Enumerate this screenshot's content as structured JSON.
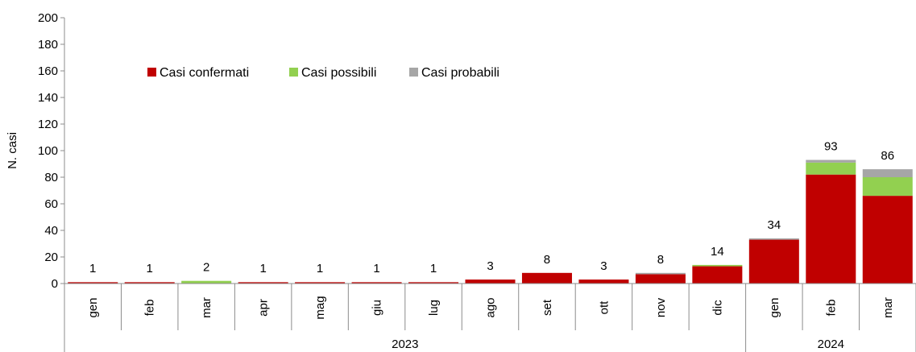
{
  "chart_data": {
    "type": "bar",
    "stacked": true,
    "ylabel": "N. casi",
    "ylim": [
      0,
      200
    ],
    "yticks": [
      0,
      20,
      40,
      60,
      80,
      100,
      120,
      140,
      160,
      180,
      200
    ],
    "grid": false,
    "legend_position": "top-left",
    "categories": [
      "gen",
      "feb",
      "mar",
      "apr",
      "mag",
      "giu",
      "lug",
      "ago",
      "set",
      "ott",
      "nov",
      "dic",
      "gen",
      "feb",
      "mar"
    ],
    "groups": [
      {
        "label": "2023",
        "start": 0,
        "end": 11
      },
      {
        "label": "2024",
        "start": 12,
        "end": 14
      }
    ],
    "series": [
      {
        "name": "Casi confermati",
        "color": "#C00000",
        "values": [
          1,
          1,
          0,
          1,
          1,
          1,
          1,
          3,
          8,
          3,
          7,
          13,
          33,
          82,
          66
        ]
      },
      {
        "name": "Casi possibili",
        "color": "#92D050",
        "values": [
          0,
          0,
          2,
          0,
          0,
          0,
          0,
          0,
          0,
          0,
          0,
          1,
          0,
          9,
          14
        ]
      },
      {
        "name": "Casi probabili",
        "color": "#A6A6A6",
        "values": [
          0,
          0,
          0,
          0,
          0,
          0,
          0,
          0,
          0,
          0,
          1,
          0,
          1,
          2,
          6
        ]
      }
    ],
    "totals": [
      1,
      1,
      2,
      1,
      1,
      1,
      1,
      3,
      8,
      3,
      8,
      14,
      34,
      93,
      86
    ]
  }
}
